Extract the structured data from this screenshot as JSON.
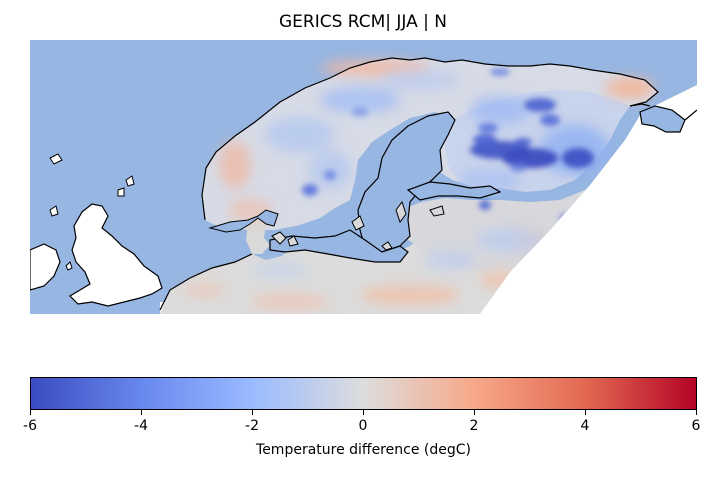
{
  "title": "GERICS RCM| JJA | N",
  "colorbar": {
    "label": "Temperature difference (degC)",
    "ticks": [
      "-6",
      "-4",
      "-2",
      "0",
      "2",
      "4",
      "6"
    ],
    "min": -6,
    "max": 6,
    "colormap": "coolwarm",
    "stops": [
      "#3b4cc0",
      "#6788ee",
      "#9abbff",
      "#dddddd",
      "#f7a889",
      "#e26952",
      "#b40426"
    ]
  },
  "map": {
    "ocean_color": "#97b6e1",
    "land_outside_color": "#ffffff",
    "coastline_color": "#000000"
  }
}
